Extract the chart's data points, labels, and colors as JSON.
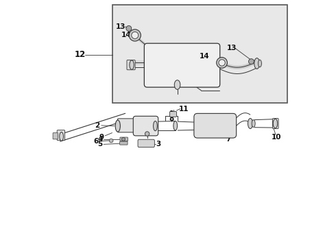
{
  "bg_color": "#ffffff",
  "box_bg": "#e8e8e8",
  "line_color": "#333333",
  "label_color": "#111111",
  "font_size": 7.5
}
